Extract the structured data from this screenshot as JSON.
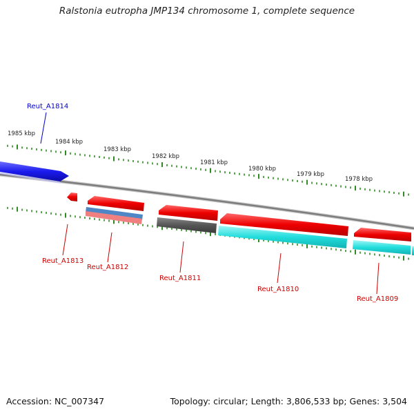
{
  "title": "Ralstonia eutropha JMP134 chromosome 1, complete sequence",
  "footer": {
    "accession": "Accession: NC_007347",
    "topology": "Topology: circular; Length: 3,806,533 bp; Genes: 3,504"
  },
  "scale_labels": [
    "1985 kbp",
    "1984 kbp",
    "1983 kbp",
    "1982 kbp",
    "1981 kbp",
    "1980 kbp",
    "1979 kbp",
    "1978 kbp"
  ],
  "genes": [
    {
      "name": "Reut_A1814",
      "color": "#0000cc"
    },
    {
      "name": "Reut_A1813",
      "color": "#cc0000"
    },
    {
      "name": "Reut_A1812",
      "color": "#cc0000"
    },
    {
      "name": "Reut_A1811",
      "color": "#cc0000"
    },
    {
      "name": "Reut_A1810",
      "color": "#cc0000"
    },
    {
      "name": "Reut_A1809",
      "color": "#cc0000"
    }
  ],
  "colors": {
    "forward_gene": "#1a1aee",
    "reverse_gene": "#ee0000",
    "cds_blue": "#4f86c6",
    "cds_pink": "#f08080",
    "cds_gray": "#555555",
    "cds_cyan": "#22dddd",
    "tick": "#2e8b22",
    "backbone": "#888888"
  }
}
